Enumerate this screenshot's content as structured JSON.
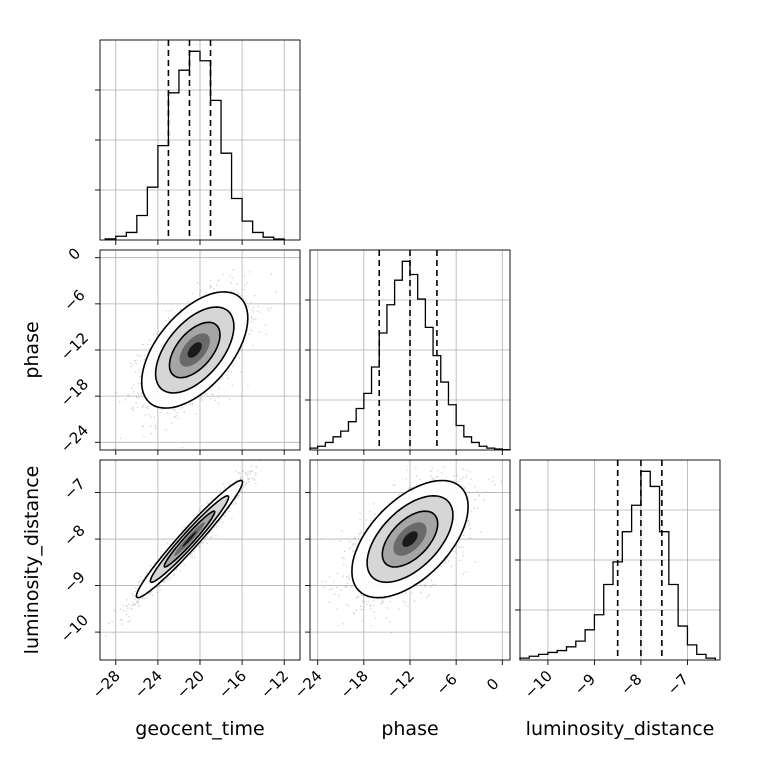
{
  "chart_data": {
    "type": "corner",
    "grid": true,
    "parameters": [
      {
        "name": "geocent_time",
        "label": "geocent_time",
        "range": [
          -29.5,
          -10.5
        ],
        "ticks": [
          -28,
          -24,
          -20,
          -16,
          -12
        ],
        "tick_labels": [
          "−28",
          "−24",
          "−20",
          "−16",
          "−12"
        ]
      },
      {
        "name": "phase",
        "label": "phase",
        "range": [
          -25,
          1
        ],
        "ticks": [
          -24,
          -18,
          -12,
          -6,
          0
        ],
        "tick_labels": [
          "−24",
          "−18",
          "−12",
          "−6",
          "0"
        ]
      },
      {
        "name": "luminosity_distance",
        "label": "luminosity_distance",
        "range": [
          -10.6,
          -6.3
        ],
        "ticks": [
          -10,
          -9,
          -8,
          -7
        ],
        "tick_labels": [
          "−10",
          "−9",
          "−8",
          "−7"
        ]
      }
    ],
    "marginals": [
      {
        "parameter": "geocent_time",
        "quantiles": [
          -23,
          -21,
          -19
        ],
        "bin_edges": [
          -29,
          -28,
          -27,
          -26,
          -25,
          -24,
          -23,
          -22,
          -21,
          -20,
          -19,
          -18,
          -17,
          -16,
          -15,
          -14,
          -13,
          -12
        ],
        "counts": [
          0.006,
          0.02,
          0.04,
          0.13,
          0.28,
          0.5,
          0.78,
          0.9,
          1.0,
          0.95,
          0.74,
          0.46,
          0.22,
          0.1,
          0.04,
          0.015,
          0.005
        ]
      },
      {
        "parameter": "phase",
        "quantiles": [
          -16,
          -12,
          -8.5
        ],
        "bin_edges": [
          -25,
          -24,
          -23,
          -22,
          -21,
          -20,
          -19,
          -18,
          -17,
          -16,
          -15,
          -14,
          -13,
          -12,
          -11,
          -10,
          -9,
          -8,
          -7,
          -6,
          -5,
          -4,
          -3,
          -2,
          -1,
          0,
          1
        ],
        "counts": [
          0.01,
          0.02,
          0.04,
          0.07,
          0.1,
          0.15,
          0.22,
          0.3,
          0.44,
          0.62,
          0.77,
          0.9,
          1.0,
          0.93,
          0.8,
          0.65,
          0.5,
          0.36,
          0.24,
          0.13,
          0.07,
          0.04,
          0.02,
          0.01,
          0.005,
          0.002
        ]
      },
      {
        "parameter": "luminosity_distance",
        "quantiles": [
          -8.5,
          -8.0,
          -7.55
        ],
        "bin_edges": [
          -10.6,
          -10.4,
          -10.2,
          -10.0,
          -9.8,
          -9.6,
          -9.4,
          -9.2,
          -9.0,
          -8.8,
          -8.6,
          -8.4,
          -8.2,
          -8.0,
          -7.8,
          -7.6,
          -7.4,
          -7.2,
          -7.0,
          -6.8,
          -6.6,
          -6.4
        ],
        "counts": [
          0.01,
          0.02,
          0.03,
          0.04,
          0.05,
          0.07,
          0.1,
          0.16,
          0.24,
          0.4,
          0.52,
          0.68,
          0.82,
          1.0,
          0.92,
          0.68,
          0.4,
          0.18,
          0.08,
          0.03,
          0.01
        ]
      }
    ],
    "joint": [
      {
        "x": "geocent_time",
        "y": "phase",
        "mean": [
          -20.5,
          -12
        ],
        "sd": [
          2.4,
          3.6
        ],
        "rho": 0.55
      },
      {
        "x": "geocent_time",
        "y": "luminosity_distance",
        "mean": [
          -21,
          -8.0
        ],
        "sd": [
          2.4,
          0.6
        ],
        "rho": 0.97
      },
      {
        "x": "phase",
        "y": "luminosity_distance",
        "mean": [
          -12,
          -8.0
        ],
        "sd": [
          3.6,
          0.6
        ],
        "rho": 0.55
      }
    ]
  }
}
